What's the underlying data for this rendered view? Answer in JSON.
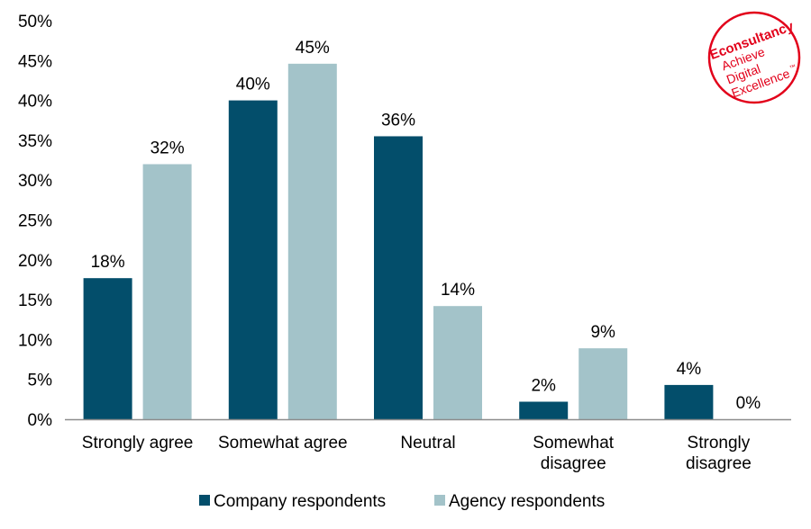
{
  "colors": {
    "company": "#034e6b",
    "agency": "#a3c3c9",
    "axis": "#8c8c8c",
    "logo": "#e2001a"
  },
  "logo": {
    "line1": "Econsultancy",
    "line2": "Achieve",
    "line3": "Digital",
    "line4": "Excellence",
    "tm": "™"
  },
  "chart_data": {
    "type": "bar",
    "title": "",
    "xlabel": "",
    "ylabel": "",
    "ylim": [
      0,
      50
    ],
    "yticks": [
      "0%",
      "5%",
      "10%",
      "15%",
      "20%",
      "25%",
      "30%",
      "35%",
      "40%",
      "45%",
      "50%"
    ],
    "categories": [
      [
        "Strongly agree"
      ],
      [
        "Somewhat agree"
      ],
      [
        "Neutral"
      ],
      [
        "Somewhat",
        "disagree"
      ],
      [
        "Strongly",
        "disagree"
      ]
    ],
    "series": [
      {
        "name": "Company respondents",
        "values": [
          17.7,
          40,
          35.5,
          2.2,
          4.3
        ],
        "labels": [
          "18%",
          "40%",
          "36%",
          "2%",
          "4%"
        ]
      },
      {
        "name": "Agency respondents",
        "values": [
          32,
          44.6,
          14.2,
          8.9,
          0
        ],
        "labels": [
          "32%",
          "45%",
          "14%",
          "9%",
          "0%"
        ]
      }
    ],
    "legend": "bottom",
    "grid": false
  }
}
